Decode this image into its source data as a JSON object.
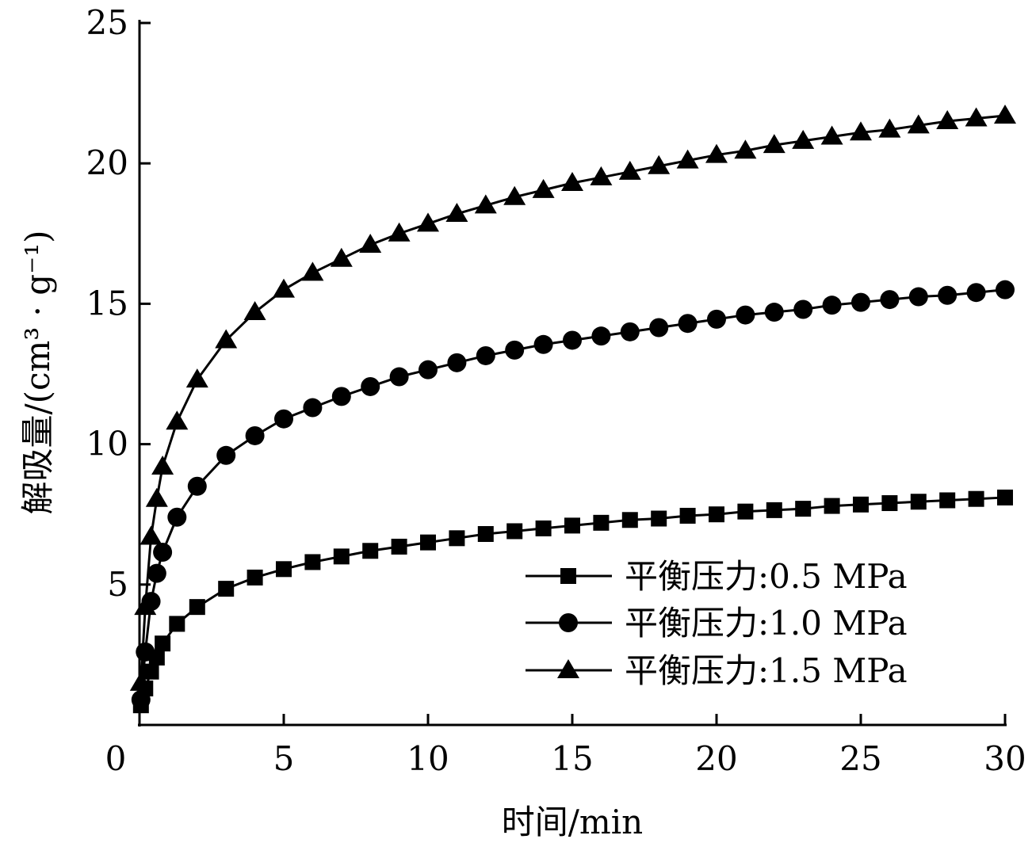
{
  "chart_data": {
    "type": "line",
    "title": "",
    "xlabel": "时间/min",
    "ylabel": "解吸量/(cm³ · g⁻¹)",
    "xlim": [
      0,
      30
    ],
    "ylim": [
      0,
      25
    ],
    "xticks": [
      "0",
      "5",
      "10",
      "15",
      "20",
      "25",
      "30"
    ],
    "yticks": [
      "5",
      "10",
      "15",
      "20",
      "25"
    ],
    "grid": false,
    "legend_position": "bottom-right",
    "x": [
      0.05,
      0.2,
      0.4,
      0.6,
      0.8,
      1.3,
      2,
      3,
      4,
      5,
      6,
      7,
      8,
      9,
      10,
      11,
      12,
      13,
      14,
      15,
      16,
      17,
      18,
      19,
      20,
      21,
      22,
      23,
      24,
      25,
      26,
      27,
      28,
      29,
      30
    ],
    "series": [
      {
        "name": "平衡压力:0.5 MPa",
        "marker": "square",
        "values": [
          0.7,
          1.3,
          1.9,
          2.4,
          2.9,
          3.6,
          4.2,
          4.85,
          5.25,
          5.55,
          5.8,
          6.0,
          6.2,
          6.35,
          6.5,
          6.65,
          6.8,
          6.9,
          7.0,
          7.1,
          7.2,
          7.3,
          7.35,
          7.45,
          7.5,
          7.6,
          7.65,
          7.7,
          7.8,
          7.85,
          7.9,
          7.95,
          8.0,
          8.05,
          8.1
        ]
      },
      {
        "name": "平衡压力:1.0 MPa",
        "marker": "circle",
        "values": [
          0.9,
          2.6,
          4.4,
          5.4,
          6.15,
          7.4,
          8.5,
          9.6,
          10.3,
          10.9,
          11.3,
          11.7,
          12.05,
          12.4,
          12.65,
          12.9,
          13.15,
          13.35,
          13.55,
          13.7,
          13.85,
          14.0,
          14.15,
          14.3,
          14.45,
          14.6,
          14.7,
          14.8,
          14.95,
          15.05,
          15.15,
          15.25,
          15.3,
          15.4,
          15.5
        ]
      },
      {
        "name": "平衡压力:1.5 MPa",
        "marker": "triangle",
        "values": [
          1.5,
          4.2,
          6.7,
          8.05,
          9.2,
          10.8,
          12.3,
          13.7,
          14.7,
          15.5,
          16.1,
          16.6,
          17.1,
          17.5,
          17.85,
          18.2,
          18.5,
          18.8,
          19.05,
          19.3,
          19.5,
          19.7,
          19.9,
          20.1,
          20.3,
          20.45,
          20.65,
          20.8,
          20.95,
          21.1,
          21.2,
          21.35,
          21.5,
          21.6,
          21.7
        ]
      }
    ]
  }
}
